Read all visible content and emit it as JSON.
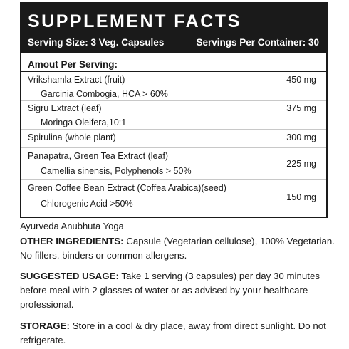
{
  "facts": {
    "title": "SUPPLEMENT FACTS",
    "serving_size": "Serving Size: 3 Veg. Capsules",
    "servings_per_container": "Servings Per Container: 30",
    "amount_per_serving": "Amout Per Serving:",
    "ingredients": [
      {
        "name": "Vrikshamla Extract (fruit)",
        "sub": "Garcinia Combogia, HCA > 60%",
        "amount": "450 mg"
      },
      {
        "name": "Sigru Extract (leaf)",
        "sub": "Moringa Oleifera,10:1",
        "amount": "375 mg"
      },
      {
        "name": "Spirulina (whole plant)",
        "sub": "",
        "amount": "300 mg"
      },
      {
        "name": "Panapatra, Green Tea Extract (leaf)",
        "sub": "Camellia sinensis, Polyphenols > 50%",
        "amount": "225 mg"
      },
      {
        "name": "Green Coffee Bean Extract (Coffea Arabica)(seed)",
        "sub": "Chlorogenic Acid >50%",
        "amount": "150 mg"
      }
    ]
  },
  "brand": "Ayurveda Anubhuta Yoga",
  "other_ingredients": {
    "label": "OTHER INGREDIENTS:",
    "text": " Capsule (Vegetarian cellulose), 100% Vegetarian. No fillers, binders or common allergens."
  },
  "suggested_usage": {
    "label": "SUGGESTED USAGE:",
    "text": " Take 1 serving (3 capsules) per day 30 minutes before meal with 2 glasses of water or as advised by your healthcare professional."
  },
  "storage": {
    "label": "STORAGE:",
    "text": " Store in a cool & dry place, away from direct sunlight. Do not refrigerate."
  }
}
